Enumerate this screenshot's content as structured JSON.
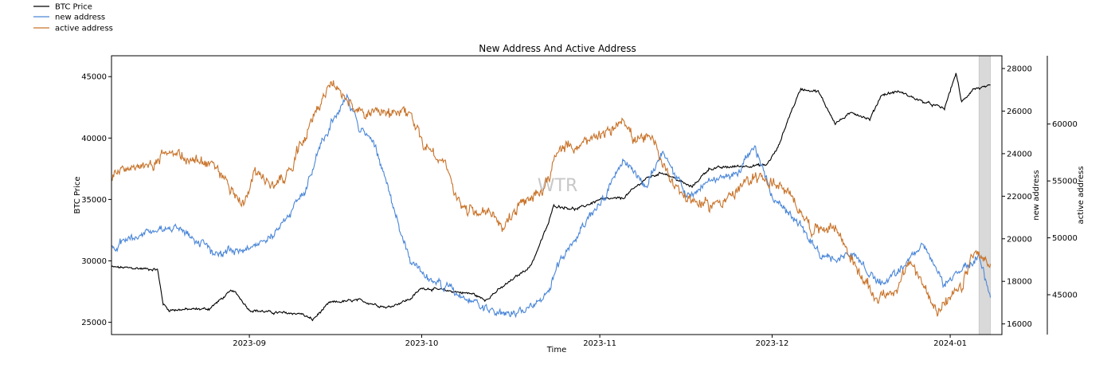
{
  "chart_data": {
    "type": "line",
    "title": "New Address And Active Address",
    "xlabel": "Time",
    "x_tick_labels": [
      "2023-09",
      "2023-10",
      "2023-11",
      "2023-12",
      "2024-01"
    ],
    "x_range": [
      "2023-08-08",
      "2024-01-10"
    ],
    "highlight_span": [
      "2024-01-06",
      "2024-01-08"
    ],
    "watermark": "WTR",
    "legend": [
      "BTC Price",
      "new address",
      "active address"
    ],
    "axes": [
      {
        "id": "price",
        "label": "BTC Price",
        "side": "left",
        "range": [
          24000,
          46700
        ],
        "ticks": [
          25000,
          30000,
          35000,
          40000,
          45000
        ]
      },
      {
        "id": "new",
        "label": "new address",
        "side": "right",
        "range": [
          15500,
          28600
        ],
        "ticks": [
          16000,
          18000,
          20000,
          22000,
          24000,
          26000,
          28000
        ]
      },
      {
        "id": "active",
        "label": "active address",
        "side": "right-outer",
        "range": [
          41500,
          66000
        ],
        "ticks": [
          45000,
          50000,
          55000,
          60000
        ]
      }
    ],
    "series": [
      {
        "name": "BTC Price",
        "axis": "price",
        "color": "#000000",
        "noise": 150,
        "points": [
          [
            "2023-08-08",
            29500
          ],
          [
            "2023-08-12",
            29400
          ],
          [
            "2023-08-16",
            29300
          ],
          [
            "2023-08-17",
            26500
          ],
          [
            "2023-08-18",
            26000
          ],
          [
            "2023-08-25",
            26100
          ],
          [
            "2023-08-29",
            27600
          ],
          [
            "2023-08-30",
            27200
          ],
          [
            "2023-09-01",
            26000
          ],
          [
            "2023-09-05",
            25800
          ],
          [
            "2023-09-10",
            25700
          ],
          [
            "2023-09-12",
            25200
          ],
          [
            "2023-09-15",
            26600
          ],
          [
            "2023-09-20",
            26800
          ],
          [
            "2023-09-25",
            26200
          ],
          [
            "2023-09-29",
            26900
          ],
          [
            "2023-10-01",
            27800
          ],
          [
            "2023-10-05",
            27600
          ],
          [
            "2023-10-10",
            27300
          ],
          [
            "2023-10-12",
            26800
          ],
          [
            "2023-10-16",
            28200
          ],
          [
            "2023-10-20",
            29600
          ],
          [
            "2023-10-23",
            33000
          ],
          [
            "2023-10-24",
            34500
          ],
          [
            "2023-10-28",
            34200
          ],
          [
            "2023-11-01",
            35000
          ],
          [
            "2023-11-05",
            35100
          ],
          [
            "2023-11-09",
            36700
          ],
          [
            "2023-11-12",
            37200
          ],
          [
            "2023-11-17",
            36000
          ],
          [
            "2023-11-20",
            37500
          ],
          [
            "2023-11-25",
            37700
          ],
          [
            "2023-11-30",
            37800
          ],
          [
            "2023-12-02",
            39200
          ],
          [
            "2023-12-04",
            41800
          ],
          [
            "2023-12-06",
            44000
          ],
          [
            "2023-12-09",
            43800
          ],
          [
            "2023-12-12",
            41200
          ],
          [
            "2023-12-15",
            42100
          ],
          [
            "2023-12-18",
            41500
          ],
          [
            "2023-12-20",
            43500
          ],
          [
            "2023-12-23",
            43800
          ],
          [
            "2023-12-27",
            43000
          ],
          [
            "2023-12-31",
            42400
          ],
          [
            "2024-01-02",
            45300
          ],
          [
            "2024-01-03",
            42900
          ],
          [
            "2024-01-05",
            44000
          ],
          [
            "2024-01-08",
            44200
          ]
        ]
      },
      {
        "name": "new address",
        "axis": "new",
        "color": "#4a86d8",
        "noise": 260,
        "points": [
          [
            "2023-08-08",
            19500
          ],
          [
            "2023-08-11",
            20000
          ],
          [
            "2023-08-15",
            20400
          ],
          [
            "2023-08-20",
            20500
          ],
          [
            "2023-08-26",
            19300
          ],
          [
            "2023-09-01",
            19600
          ],
          [
            "2023-09-05",
            20200
          ],
          [
            "2023-09-08",
            21100
          ],
          [
            "2023-09-11",
            22500
          ],
          [
            "2023-09-13",
            24200
          ],
          [
            "2023-09-16",
            25800
          ],
          [
            "2023-09-18",
            26700
          ],
          [
            "2023-09-20",
            25200
          ],
          [
            "2023-09-22",
            24900
          ],
          [
            "2023-09-24",
            23500
          ],
          [
            "2023-09-26",
            21500
          ],
          [
            "2023-09-29",
            19000
          ],
          [
            "2023-10-02",
            18200
          ],
          [
            "2023-10-06",
            17600
          ],
          [
            "2023-10-12",
            16700
          ],
          [
            "2023-10-17",
            16400
          ],
          [
            "2023-10-20",
            16800
          ],
          [
            "2023-10-23",
            17500
          ],
          [
            "2023-10-25",
            18900
          ],
          [
            "2023-10-29",
            20700
          ],
          [
            "2023-11-02",
            22000
          ],
          [
            "2023-11-05",
            23800
          ],
          [
            "2023-11-07",
            23100
          ],
          [
            "2023-11-09",
            22500
          ],
          [
            "2023-11-12",
            24200
          ],
          [
            "2023-11-16",
            22000
          ],
          [
            "2023-11-20",
            22700
          ],
          [
            "2023-11-25",
            23100
          ],
          [
            "2023-11-28",
            24300
          ],
          [
            "2023-12-01",
            22000
          ],
          [
            "2023-12-05",
            21000
          ],
          [
            "2023-12-10",
            19000
          ],
          [
            "2023-12-15",
            19200
          ],
          [
            "2023-12-20",
            17900
          ],
          [
            "2023-12-24",
            18700
          ],
          [
            "2023-12-27",
            19800
          ],
          [
            "2023-12-31",
            17800
          ],
          [
            "2024-01-03",
            18500
          ],
          [
            "2024-01-06",
            19200
          ],
          [
            "2024-01-08",
            17200
          ]
        ]
      },
      {
        "name": "active address",
        "axis": "active",
        "color": "#c8732a",
        "noise": 700,
        "points": [
          [
            "2023-08-08",
            55500
          ],
          [
            "2023-08-11",
            56300
          ],
          [
            "2023-08-14",
            56000
          ],
          [
            "2023-08-18",
            57500
          ],
          [
            "2023-08-22",
            57000
          ],
          [
            "2023-08-26",
            56200
          ],
          [
            "2023-08-31",
            53000
          ],
          [
            "2023-09-02",
            55800
          ],
          [
            "2023-09-05",
            54500
          ],
          [
            "2023-09-08",
            56000
          ],
          [
            "2023-09-10",
            58500
          ],
          [
            "2023-09-13",
            61500
          ],
          [
            "2023-09-15",
            63500
          ],
          [
            "2023-09-18",
            62200
          ],
          [
            "2023-09-20",
            61000
          ],
          [
            "2023-09-24",
            60800
          ],
          [
            "2023-09-29",
            61000
          ],
          [
            "2023-10-01",
            58500
          ],
          [
            "2023-10-05",
            56500
          ],
          [
            "2023-10-08",
            52500
          ],
          [
            "2023-10-13",
            52200
          ],
          [
            "2023-10-15",
            51000
          ],
          [
            "2023-10-18",
            52700
          ],
          [
            "2023-10-22",
            54200
          ],
          [
            "2023-10-25",
            57800
          ],
          [
            "2023-10-29",
            58200
          ],
          [
            "2023-11-03",
            59400
          ],
          [
            "2023-11-05",
            60700
          ],
          [
            "2023-11-07",
            58500
          ],
          [
            "2023-11-10",
            58700
          ],
          [
            "2023-11-13",
            55500
          ],
          [
            "2023-11-16",
            53500
          ],
          [
            "2023-11-20",
            52800
          ],
          [
            "2023-11-24",
            53700
          ],
          [
            "2023-11-28",
            55500
          ],
          [
            "2023-12-02",
            54600
          ],
          [
            "2023-12-05",
            53200
          ],
          [
            "2023-12-08",
            50700
          ],
          [
            "2023-12-12",
            51000
          ],
          [
            "2023-12-16",
            47000
          ],
          [
            "2023-12-19",
            44700
          ],
          [
            "2023-12-23",
            45600
          ],
          [
            "2023-12-25",
            48000
          ],
          [
            "2023-12-28",
            45200
          ],
          [
            "2023-12-30",
            43600
          ],
          [
            "2024-01-03",
            45600
          ],
          [
            "2024-01-05",
            48700
          ],
          [
            "2024-01-07",
            48100
          ],
          [
            "2024-01-08",
            47300
          ]
        ]
      }
    ]
  }
}
